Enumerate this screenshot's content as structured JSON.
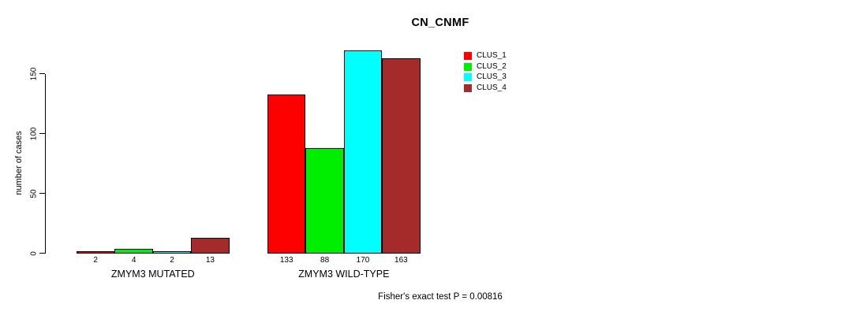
{
  "title": "CN_CNMF",
  "ylabel": "number of cases",
  "footer": "Fisher's exact test P = 0.00816",
  "chart_data": {
    "type": "bar",
    "title": "CN_CNMF",
    "xlabel": "",
    "ylabel": "number of cases",
    "grid": false,
    "legend_position": "top-right",
    "yticks": [
      0,
      50,
      100,
      150
    ],
    "ylim": [
      0,
      170
    ],
    "categories": [
      "ZMYM3 MUTATED",
      "ZMYM3 WILD-TYPE"
    ],
    "series": [
      {
        "name": "CLUS_1",
        "color": "#ff0000",
        "values": [
          2,
          133
        ]
      },
      {
        "name": "CLUS_2",
        "color": "#00ee00",
        "values": [
          4,
          88
        ]
      },
      {
        "name": "CLUS_3",
        "color": "#00ffff",
        "values": [
          2,
          170
        ]
      },
      {
        "name": "CLUS_4",
        "color": "#a52a2a",
        "values": [
          13,
          163
        ]
      }
    ],
    "groups": [
      {
        "label": "ZMYM3 MUTATED",
        "values": [
          2,
          4,
          2,
          13
        ]
      },
      {
        "label": "ZMYM3 WILD-TYPE",
        "values": [
          133,
          88,
          170,
          163
        ]
      }
    ],
    "annotation": "Fisher's exact test P = 0.00816"
  }
}
